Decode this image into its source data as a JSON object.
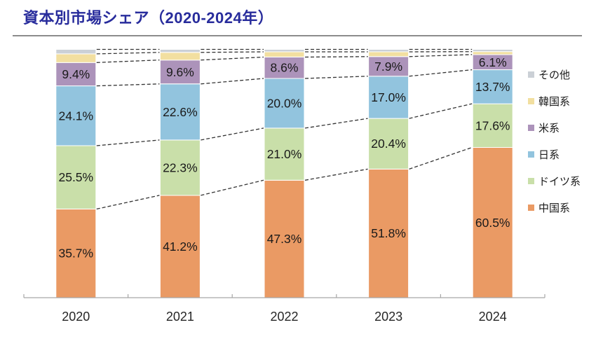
{
  "page": {
    "title": "資本別市場シェア（2020-2024年）"
  },
  "colors": {
    "title_text": "#282C9C",
    "divider": "#8C8C8C",
    "axis_line": "#A6A6A6",
    "connector_line": "#333333",
    "segment_label_text": "#1A1A1A",
    "year_label_text": "#262626"
  },
  "legend": {
    "items": [
      {
        "name": "other",
        "label": "その他",
        "color": "#CBD0D6"
      },
      {
        "name": "korea",
        "label": "韓国系",
        "color": "#F2DFA0"
      },
      {
        "name": "us",
        "label": "米系",
        "color": "#AC93BA"
      },
      {
        "name": "japan",
        "label": "日系",
        "color": "#92C4DE"
      },
      {
        "name": "germany",
        "label": "ドイツ系",
        "color": "#C9DFA9"
      },
      {
        "name": "china",
        "label": "中国系",
        "color": "#EA9A64"
      }
    ]
  },
  "chart_data": {
    "type": "bar",
    "stacked": true,
    "unit": "%",
    "title": "資本別市場シェア（2020-2024年）",
    "categories": [
      "2020",
      "2021",
      "2022",
      "2023",
      "2024"
    ],
    "series": [
      {
        "name": "china",
        "label": "中国系",
        "color": "#EA9A64",
        "labeled": true,
        "values": [
          35.7,
          41.2,
          47.3,
          51.8,
          60.5
        ]
      },
      {
        "name": "germany",
        "label": "ドイツ系",
        "color": "#C9DFA9",
        "labeled": true,
        "values": [
          25.5,
          22.3,
          21.0,
          20.4,
          17.6
        ]
      },
      {
        "name": "japan",
        "label": "日系",
        "color": "#92C4DE",
        "labeled": true,
        "values": [
          24.1,
          22.6,
          20.0,
          17.0,
          13.7
        ]
      },
      {
        "name": "us",
        "label": "米系",
        "color": "#AC93BA",
        "labeled": true,
        "values": [
          9.4,
          9.6,
          8.6,
          7.9,
          6.1
        ]
      },
      {
        "name": "korea",
        "label": "韓国系",
        "color": "#F2DFA0",
        "labeled": false,
        "values": [
          3.5,
          3.1,
          2.1,
          1.9,
          1.2
        ]
      },
      {
        "name": "other",
        "label": "その他",
        "color": "#CBD0D6",
        "labeled": false,
        "values": [
          1.8,
          1.2,
          1.0,
          1.0,
          0.9
        ]
      }
    ],
    "ylim": [
      0,
      100
    ],
    "grid": false,
    "legend_position": "right",
    "connector_lines": "dashed",
    "value_label_format": "0.0%"
  }
}
